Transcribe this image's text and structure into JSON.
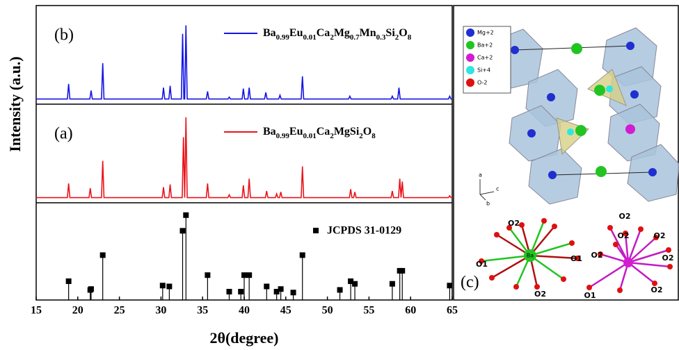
{
  "chart_data": [
    {
      "type": "line",
      "panel_label": "(b)",
      "xlim": [
        15,
        65
      ],
      "ylim": [
        0,
        100
      ],
      "series": [
        {
          "name": "Ba0.99Eu0.01Ca2Mg0.7Mn0.3Si2O8",
          "color": "#1414e6",
          "x": [
            15,
            18.75,
            18.9,
            19.05,
            21.45,
            21.6,
            21.75,
            22.85,
            23.0,
            23.15,
            30.15,
            30.3,
            30.45,
            30.95,
            31.1,
            31.25,
            32.45,
            32.6,
            32.75,
            32.85,
            33.0,
            33.15,
            35.45,
            35.6,
            35.75,
            38.05,
            38.2,
            38.35,
            39.75,
            39.9,
            40.05,
            40.45,
            40.6,
            40.75,
            42.45,
            42.6,
            42.75,
            44.15,
            44.3,
            44.45,
            46.85,
            47.0,
            47.15,
            52.55,
            52.7,
            52.85,
            57.65,
            57.8,
            57.95,
            58.45,
            58.6,
            58.75,
            64.55,
            64.7,
            64.85,
            65
          ],
          "values": [
            4,
            4,
            20,
            4,
            4,
            13,
            4,
            4,
            42,
            4,
            4,
            16,
            4,
            4,
            18,
            4,
            4,
            73,
            4,
            4,
            82,
            4,
            4,
            12,
            4,
            4,
            6,
            4,
            4,
            15,
            4,
            4,
            16,
            4,
            4,
            11,
            4,
            4,
            8,
            4,
            4,
            28,
            4,
            4,
            7,
            4,
            4,
            7,
            4,
            4,
            16,
            4,
            4,
            7,
            4,
            4
          ]
        }
      ]
    },
    {
      "type": "line",
      "panel_label": "(a)",
      "y_label": "Intensity (a.u.)",
      "xlim": [
        15,
        65
      ],
      "ylim": [
        0,
        100
      ],
      "series": [
        {
          "name": "Ba0.99Eu0.01Ca2MgSi2O8",
          "color": "#e8141b",
          "x": [
            15,
            18.75,
            18.9,
            19.05,
            21.35,
            21.5,
            21.65,
            22.85,
            23.0,
            23.15,
            30.15,
            30.3,
            30.45,
            30.95,
            31.1,
            31.25,
            32.55,
            32.7,
            32.85,
            32.85,
            33.0,
            33.15,
            35.45,
            35.6,
            35.75,
            38.05,
            38.2,
            38.35,
            39.75,
            39.9,
            40.05,
            40.45,
            40.6,
            40.75,
            42.55,
            42.7,
            42.85,
            43.75,
            43.9,
            44.05,
            44.25,
            44.4,
            44.55,
            46.85,
            47.0,
            47.15,
            52.65,
            52.8,
            52.95,
            53.15,
            53.3,
            53.45,
            57.65,
            57.8,
            57.95,
            58.55,
            58.7,
            58.85,
            58.85,
            59.0,
            59.15,
            64.55,
            64.7,
            64.85,
            65
          ],
          "values": [
            4,
            4,
            19,
            4,
            4,
            14,
            4,
            4,
            43,
            4,
            4,
            15,
            4,
            4,
            18,
            4,
            4,
            68,
            4,
            4,
            89,
            4,
            4,
            19,
            4,
            4,
            7,
            4,
            4,
            17,
            4,
            4,
            24,
            4,
            4,
            11,
            4,
            4,
            8,
            4,
            4,
            10,
            4,
            4,
            37,
            4,
            4,
            13,
            4,
            4,
            10,
            4,
            4,
            11,
            4,
            4,
            24,
            4,
            4,
            21,
            4,
            4,
            6,
            4,
            4
          ]
        }
      ]
    },
    {
      "type": "stem",
      "x_label": "2θ(degree)",
      "xlim": [
        15,
        65
      ],
      "ylim": [
        0,
        107
      ],
      "xticks": [
        15,
        20,
        25,
        30,
        35,
        40,
        45,
        50,
        55,
        60,
        65
      ],
      "series": [
        {
          "name": "JCPDS 31-0129",
          "color": "#000000",
          "x": [
            18.9,
            21.5,
            21.6,
            23.0,
            30.2,
            31.0,
            32.6,
            33.0,
            35.6,
            38.2,
            39.6,
            40.0,
            40.6,
            42.7,
            43.9,
            44.4,
            45.9,
            47.0,
            51.5,
            52.8,
            53.3,
            57.8,
            58.7,
            59.0,
            64.7
          ],
          "values": [
            20,
            10,
            11,
            50,
            15,
            14,
            78,
            96,
            27,
            8,
            8,
            27,
            27,
            14,
            8,
            11,
            7,
            50,
            10,
            20,
            17,
            17,
            32,
            32,
            15
          ]
        }
      ]
    }
  ],
  "structure": {
    "label": "(c)",
    "legend": [
      "Mg+2",
      "Ba+2",
      "Ca+2",
      "Si+4",
      "O-2"
    ],
    "axes": [
      "a",
      "c",
      "b"
    ],
    "ba_site": {
      "center": "Ba",
      "labels": [
        "O2",
        "O1",
        "O1",
        "O2"
      ]
    },
    "ca_site": {
      "labels": [
        "O2",
        "O2",
        "O2",
        "O2",
        "O2",
        "O1",
        "O2"
      ]
    }
  }
}
